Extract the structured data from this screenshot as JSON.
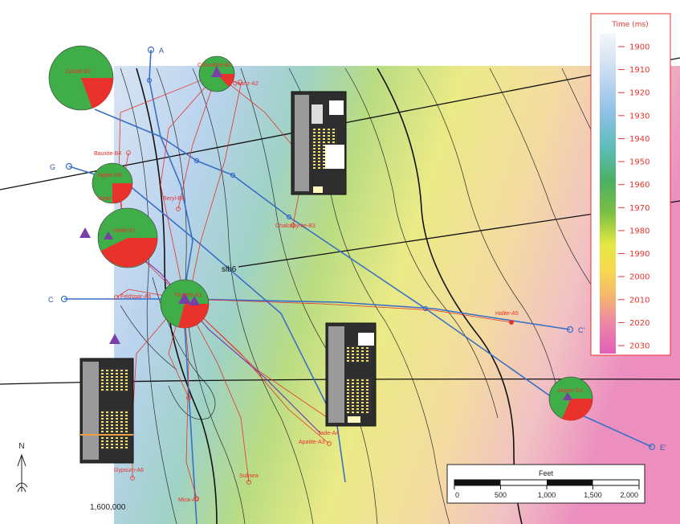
{
  "colors": {
    "well": "#e8322b",
    "cross_section": "#3a6fc8",
    "fault": "#111111",
    "pie_green": "#3fae49",
    "pie_red": "#e8322b",
    "marker": "#7a3fa6"
  },
  "legend": {
    "title": "Time (ms)",
    "ticks": [
      "1900",
      "1910",
      "1920",
      "1930",
      "1940",
      "1950",
      "1960",
      "1970",
      "1980",
      "1990",
      "2000",
      "2010",
      "2020",
      "2030"
    ]
  },
  "horizon_label": "slb6",
  "cross_sections": [
    {
      "id": "A",
      "start_label": "A"
    },
    {
      "id": "G",
      "start_label": "G"
    },
    {
      "id": "C",
      "start_label": "C",
      "end_label": "C'"
    },
    {
      "id": "E",
      "end_label": "E'"
    }
  ],
  "wells": [
    {
      "name": "Cobalt-B2"
    },
    {
      "name": "Columbite-B1"
    },
    {
      "name": "Quartz-A2"
    },
    {
      "name": "Bauxite-B4"
    },
    {
      "name": "Agate-H6"
    },
    {
      "name": "Mineral-B5"
    },
    {
      "name": "Beryl-B6"
    },
    {
      "name": "Chalcopyrite-B3"
    },
    {
      "name": "Halite-F1"
    },
    {
      "name": "Feldspar-A6"
    },
    {
      "name": "Fluorite-A1"
    },
    {
      "name": "Halite-A5"
    },
    {
      "name": "Jasper-D1"
    },
    {
      "name": "Jade-A4"
    },
    {
      "name": "Apatite-A3"
    },
    {
      "name": "Gypsum-A6"
    },
    {
      "name": "Mica-A3"
    },
    {
      "name": "Subsea"
    }
  ],
  "pies": [
    {
      "well": "Cobalt-B2",
      "red_fraction": 0.18
    },
    {
      "well": "Columbite-B1",
      "red_fraction": 0.15
    },
    {
      "well": "Agate-H6",
      "red_fraction": 0.25
    },
    {
      "well": "Halite-F1",
      "red_fraction": 0.33
    },
    {
      "well": "Fluorite-A1",
      "red_fraction": 0.3
    },
    {
      "well": "Jasper-D1",
      "red_fraction": 0.3
    }
  ],
  "scale_bar": {
    "title": "Feet",
    "ticks": [
      "0",
      "500",
      "1,000",
      "1,500",
      "2,000"
    ]
  },
  "north_label": "N",
  "coordinate_label": "1,600,000"
}
